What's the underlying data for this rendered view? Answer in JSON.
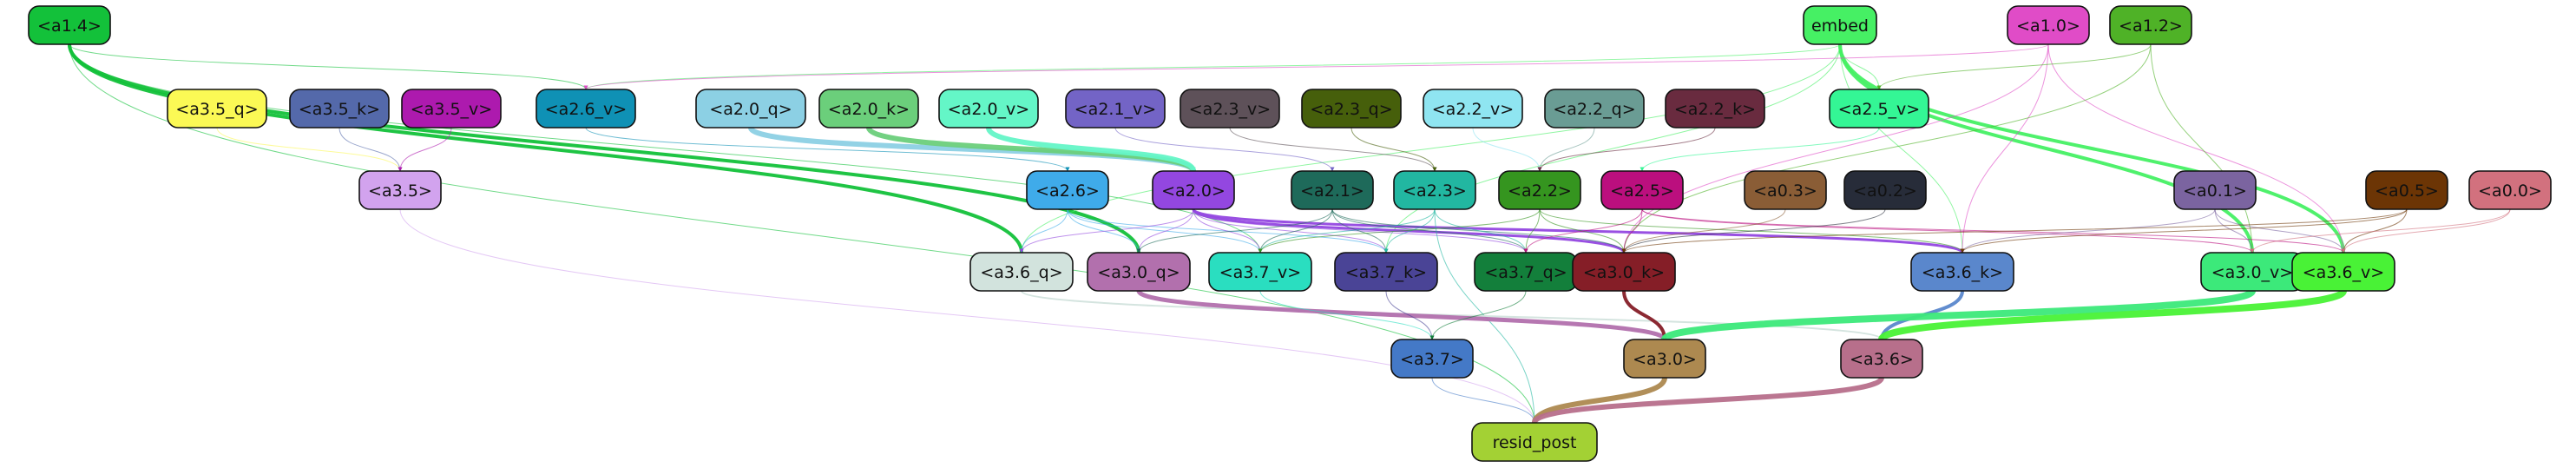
{
  "nodes": [
    {
      "id": "a1_4",
      "label": "<a1.4>",
      "fill": "#13c13a",
      "text": "#111111"
    },
    {
      "id": "embed",
      "label": "embed",
      "fill": "#46f064",
      "text": "#111111"
    },
    {
      "id": "a1_0",
      "label": "<a1.0>",
      "fill": "#e04cc7",
      "text": "#111111"
    },
    {
      "id": "a1_2",
      "label": "<a1.2>",
      "fill": "#4fb227",
      "text": "#111111"
    },
    {
      "id": "a3_5_q",
      "label": "<a3.5_q>",
      "fill": "#fbf955",
      "text": "#111111"
    },
    {
      "id": "a3_5_k",
      "label": "<a3.5_k>",
      "fill": "#5469aa",
      "text": "#111111"
    },
    {
      "id": "a3_5_v",
      "label": "<a3.5_v>",
      "fill": "#ad1aae",
      "text": "#111111"
    },
    {
      "id": "a2_6_v",
      "label": "<a2.6_v>",
      "fill": "#0f91b5",
      "text": "#111111"
    },
    {
      "id": "a2_0_q",
      "label": "<a2.0_q>",
      "fill": "#8cd0e4",
      "text": "#111111"
    },
    {
      "id": "a2_0_k",
      "label": "<a2.0_k>",
      "fill": "#6bcf7b",
      "text": "#111111"
    },
    {
      "id": "a2_0_v",
      "label": "<a2.0_v>",
      "fill": "#64f6c7",
      "text": "#111111"
    },
    {
      "id": "a2_1_v",
      "label": "<a2.1_v>",
      "fill": "#7364c6",
      "text": "#111111"
    },
    {
      "id": "a2_3_v",
      "label": "<a2.3_v>",
      "fill": "#5e5159",
      "text": "#111111"
    },
    {
      "id": "a2_3_q",
      "label": "<a2.3_q>",
      "fill": "#465f0b",
      "text": "#111111"
    },
    {
      "id": "a2_2_v",
      "label": "<a2.2_v>",
      "fill": "#8fe5f1",
      "text": "#111111"
    },
    {
      "id": "a2_2_q",
      "label": "<a2.2_q>",
      "fill": "#6a9c94",
      "text": "#111111"
    },
    {
      "id": "a2_2_k",
      "label": "<a2.2_k>",
      "fill": "#692b3f",
      "text": "#111111"
    },
    {
      "id": "a2_5_v",
      "label": "<a2.5_v>",
      "fill": "#34f695",
      "text": "#111111"
    },
    {
      "id": "a3_5",
      "label": "<a3.5>",
      "fill": "#d2a3ee",
      "text": "#111111"
    },
    {
      "id": "a2_6",
      "label": "<a2.6>",
      "fill": "#3fabea",
      "text": "#111111"
    },
    {
      "id": "a2_0",
      "label": "<a2.0>",
      "fill": "#9347e0",
      "text": "#111111"
    },
    {
      "id": "a2_1",
      "label": "<a2.1>",
      "fill": "#1e6a5a",
      "text": "#111111"
    },
    {
      "id": "a2_3",
      "label": "<a2.3>",
      "fill": "#22b7a1",
      "text": "#111111"
    },
    {
      "id": "a2_2",
      "label": "<a2.2>",
      "fill": "#35951f",
      "text": "#111111"
    },
    {
      "id": "a2_5",
      "label": "<a2.5>",
      "fill": "#bb0f7e",
      "text": "#111111"
    },
    {
      "id": "a0_3",
      "label": "<a0.3>",
      "fill": "#8a5d36",
      "text": "#111111"
    },
    {
      "id": "a0_2",
      "label": "<a0.2>",
      "fill": "#272c39",
      "text": "#111111"
    },
    {
      "id": "a0_1",
      "label": "<a0.1>",
      "fill": "#7b64a0",
      "text": "#111111"
    },
    {
      "id": "a0_5",
      "label": "<a0.5>",
      "fill": "#6c3505",
      "text": "#111111"
    },
    {
      "id": "a0_0",
      "label": "<a0.0>",
      "fill": "#d2717e",
      "text": "#111111"
    },
    {
      "id": "a3_6_q",
      "label": "<a3.6_q>",
      "fill": "#d2e3dd",
      "text": "#111111"
    },
    {
      "id": "a3_0_q",
      "label": "<a3.0_q>",
      "fill": "#b270ad",
      "text": "#111111"
    },
    {
      "id": "a3_7_v",
      "label": "<a3.7_v>",
      "fill": "#2adec0",
      "text": "#111111"
    },
    {
      "id": "a3_7_k",
      "label": "<a3.7_k>",
      "fill": "#4a4496",
      "text": "#111111"
    },
    {
      "id": "a3_7_q",
      "label": "<a3.7_q>",
      "fill": "#137f3b",
      "text": "#111111"
    },
    {
      "id": "a3_0_k",
      "label": "<a3.0_k>",
      "fill": "#851e27",
      "text": "#111111"
    },
    {
      "id": "a3_6_k",
      "label": "<a3.6_k>",
      "fill": "#5a87cc",
      "text": "#111111"
    },
    {
      "id": "a3_0_v",
      "label": "<a3.0_v>",
      "fill": "#3ce97a",
      "text": "#111111"
    },
    {
      "id": "a3_6_v",
      "label": "<a3.6_v>",
      "fill": "#49f236",
      "text": "#111111"
    },
    {
      "id": "a3_7",
      "label": "<a3.7>",
      "fill": "#4479c7",
      "text": "#111111"
    },
    {
      "id": "a3_0",
      "label": "<a3.0>",
      "fill": "#ad8950",
      "text": "#111111"
    },
    {
      "id": "a3_6",
      "label": "<a3.6>",
      "fill": "#b76f8b",
      "text": "#111111"
    },
    {
      "id": "resid_post",
      "label": "resid_post",
      "fill": "#a3d134",
      "text": "#111111"
    }
  ],
  "edges": [
    {
      "from": "a1_4",
      "to": "resid_post",
      "color": "#13c13a",
      "weight": 1
    },
    {
      "from": "a1_4",
      "to": "a3_6_q",
      "color": "#13c13a",
      "weight": 4
    },
    {
      "from": "a1_4",
      "to": "a3_0_q",
      "color": "#13c13a",
      "weight": 4
    },
    {
      "from": "a1_4",
      "to": "a2_6_v",
      "color": "#13c13a",
      "weight": 1
    },
    {
      "from": "a1_4",
      "to": "a3_7_v",
      "color": "#13c13a",
      "weight": 1
    },
    {
      "from": "embed",
      "to": "a3_6_v",
      "color": "#46f064",
      "weight": 4
    },
    {
      "from": "embed",
      "to": "a3_0_v",
      "color": "#46f064",
      "weight": 4
    },
    {
      "from": "embed",
      "to": "a2_5_v",
      "color": "#46f064",
      "weight": 1
    },
    {
      "from": "embed",
      "to": "a3_6_k",
      "color": "#46f064",
      "weight": 1
    },
    {
      "from": "embed",
      "to": "a2_6_v",
      "color": "#46f064",
      "weight": 1
    },
    {
      "from": "embed",
      "to": "a3_6_q",
      "color": "#46f064",
      "weight": 1
    },
    {
      "from": "embed",
      "to": "a3_7_k",
      "color": "#46f064",
      "weight": 1
    },
    {
      "from": "a1_0",
      "to": "a3_6_k",
      "color": "#e04cc7",
      "weight": 1
    },
    {
      "from": "a1_0",
      "to": "a3_0_k",
      "color": "#e04cc7",
      "weight": 1
    },
    {
      "from": "a1_0",
      "to": "a3_6_v",
      "color": "#e04cc7",
      "weight": 1
    },
    {
      "from": "a1_0",
      "to": "a2_6_v",
      "color": "#e04cc7",
      "weight": 1
    },
    {
      "from": "a1_2",
      "to": "a3_0_v",
      "color": "#4fb227",
      "weight": 1
    },
    {
      "from": "a1_2",
      "to": "a2_5_v",
      "color": "#4fb227",
      "weight": 1
    },
    {
      "from": "a1_2",
      "to": "a3_0_k",
      "color": "#4fb227",
      "weight": 1
    },
    {
      "from": "a3_5_q",
      "to": "a3_5",
      "color": "#fbf955",
      "weight": 1
    },
    {
      "from": "a3_5_k",
      "to": "a3_5",
      "color": "#5469aa",
      "weight": 1
    },
    {
      "from": "a3_5_v",
      "to": "a3_5",
      "color": "#ad1aae",
      "weight": 1
    },
    {
      "from": "a3_5",
      "to": "resid_post",
      "color": "#d2a3ee",
      "weight": 1
    },
    {
      "from": "a2_6_v",
      "to": "a2_6",
      "color": "#0f91b5",
      "weight": 1
    },
    {
      "from": "a2_0_q",
      "to": "a2_0",
      "color": "#8cd0e4",
      "weight": 6
    },
    {
      "from": "a2_0_k",
      "to": "a2_0",
      "color": "#6bcf7b",
      "weight": 6
    },
    {
      "from": "a2_0_v",
      "to": "a2_0",
      "color": "#64f6c7",
      "weight": 6
    },
    {
      "from": "a2_1_v",
      "to": "a2_1",
      "color": "#7364c6",
      "weight": 1
    },
    {
      "from": "a2_3_v",
      "to": "a2_3",
      "color": "#5e5159",
      "weight": 1
    },
    {
      "from": "a2_3_q",
      "to": "a2_3",
      "color": "#465f0b",
      "weight": 1
    },
    {
      "from": "a2_2_v",
      "to": "a2_2",
      "color": "#8fe5f1",
      "weight": 1
    },
    {
      "from": "a2_2_q",
      "to": "a2_2",
      "color": "#6a9c94",
      "weight": 1
    },
    {
      "from": "a2_2_k",
      "to": "a2_2",
      "color": "#692b3f",
      "weight": 1
    },
    {
      "from": "a2_5_v",
      "to": "a2_5",
      "color": "#34f695",
      "weight": 1
    },
    {
      "from": "a2_6",
      "to": "a3_6_q",
      "color": "#3fabea",
      "weight": 1
    },
    {
      "from": "a2_6",
      "to": "a3_0_q",
      "color": "#3fabea",
      "weight": 1
    },
    {
      "from": "a2_6",
      "to": "a3_7_v",
      "color": "#3fabea",
      "weight": 1
    },
    {
      "from": "a2_6",
      "to": "a3_7_k",
      "color": "#3fabea",
      "weight": 1
    },
    {
      "from": "a2_0",
      "to": "a3_6_q",
      "color": "#9347e0",
      "weight": 1
    },
    {
      "from": "a2_0",
      "to": "a3_0_q",
      "color": "#9347e0",
      "weight": 1
    },
    {
      "from": "a2_0",
      "to": "a3_7_v",
      "color": "#9347e0",
      "weight": 1
    },
    {
      "from": "a2_0",
      "to": "a3_7_k",
      "color": "#9347e0",
      "weight": 1
    },
    {
      "from": "a2_0",
      "to": "a3_7_q",
      "color": "#9347e0",
      "weight": 1
    },
    {
      "from": "a2_0",
      "to": "a3_0_k",
      "color": "#9347e0",
      "weight": 3
    },
    {
      "from": "a2_0",
      "to": "a3_6_k",
      "color": "#9347e0",
      "weight": 3
    },
    {
      "from": "a2_1",
      "to": "a3_0_q",
      "color": "#1e6a5a",
      "weight": 1
    },
    {
      "from": "a2_1",
      "to": "a3_7_v",
      "color": "#1e6a5a",
      "weight": 1
    },
    {
      "from": "a2_1",
      "to": "a3_7_k",
      "color": "#1e6a5a",
      "weight": 1
    },
    {
      "from": "a2_1",
      "to": "a3_7_q",
      "color": "#1e6a5a",
      "weight": 1
    },
    {
      "from": "a2_1",
      "to": "a3_0_k",
      "color": "#1e6a5a",
      "weight": 1
    },
    {
      "from": "a2_3",
      "to": "a3_7_v",
      "color": "#22b7a1",
      "weight": 1
    },
    {
      "from": "a2_3",
      "to": "a3_7_k",
      "color": "#22b7a1",
      "weight": 1
    },
    {
      "from": "a2_3",
      "to": "a3_7_q",
      "color": "#22b7a1",
      "weight": 1
    },
    {
      "from": "a2_3",
      "to": "resid_post",
      "color": "#22b7a1",
      "weight": 1
    },
    {
      "from": "a2_2",
      "to": "a3_7_v",
      "color": "#35951f",
      "weight": 1
    },
    {
      "from": "a2_2",
      "to": "a3_7_q",
      "color": "#35951f",
      "weight": 1
    },
    {
      "from": "a2_2",
      "to": "a3_0_k",
      "color": "#35951f",
      "weight": 1
    },
    {
      "from": "a2_2",
      "to": "a3_6_k",
      "color": "#35951f",
      "weight": 1
    },
    {
      "from": "a2_5",
      "to": "a3_0_k",
      "color": "#bb0f7e",
      "weight": 1
    },
    {
      "from": "a2_5",
      "to": "a3_7_q",
      "color": "#bb0f7e",
      "weight": 1
    },
    {
      "from": "a2_5",
      "to": "a3_6_v",
      "color": "#bb0f7e",
      "weight": 1
    },
    {
      "from": "a2_5",
      "to": "a3_0_v",
      "color": "#bb0f7e",
      "weight": 1
    },
    {
      "from": "a0_3",
      "to": "a3_0_k",
      "color": "#8a5d36",
      "weight": 1
    },
    {
      "from": "a0_2",
      "to": "a3_0_k",
      "color": "#272c39",
      "weight": 1
    },
    {
      "from": "a0_1",
      "to": "a3_0_v",
      "color": "#7b64a0",
      "weight": 1
    },
    {
      "from": "a0_1",
      "to": "a3_6_v",
      "color": "#7b64a0",
      "weight": 1
    },
    {
      "from": "a0_1",
      "to": "a3_6_k",
      "color": "#7b64a0",
      "weight": 1
    },
    {
      "from": "a0_5",
      "to": "a3_6_v",
      "color": "#6c3505",
      "weight": 1
    },
    {
      "from": "a0_5",
      "to": "a3_6_k",
      "color": "#6c3505",
      "weight": 1
    },
    {
      "from": "a0_5",
      "to": "a3_0_k",
      "color": "#6c3505",
      "weight": 1
    },
    {
      "from": "a0_0",
      "to": "a3_6_v",
      "color": "#d2717e",
      "weight": 1
    },
    {
      "from": "a0_0",
      "to": "a3_0_v",
      "color": "#d2717e",
      "weight": 1
    },
    {
      "from": "a3_6_q",
      "to": "a3_6",
      "color": "#d2e3dd",
      "weight": 2
    },
    {
      "from": "a3_0_q",
      "to": "a3_0",
      "color": "#b270ad",
      "weight": 5
    },
    {
      "from": "a3_7_v",
      "to": "a3_7",
      "color": "#2adec0",
      "weight": 1
    },
    {
      "from": "a3_7_k",
      "to": "a3_7",
      "color": "#4a4496",
      "weight": 1
    },
    {
      "from": "a3_7_q",
      "to": "a3_7",
      "color": "#137f3b",
      "weight": 1
    },
    {
      "from": "a3_0_k",
      "to": "a3_0",
      "color": "#851e27",
      "weight": 4
    },
    {
      "from": "a3_6_k",
      "to": "a3_6",
      "color": "#5a87cc",
      "weight": 4
    },
    {
      "from": "a3_0_v",
      "to": "a3_0",
      "color": "#3ce97a",
      "weight": 8
    },
    {
      "from": "a3_6_v",
      "to": "a3_6",
      "color": "#49f236",
      "weight": 8
    },
    {
      "from": "a3_7",
      "to": "resid_post",
      "color": "#4479c7",
      "weight": 1
    },
    {
      "from": "a3_0",
      "to": "resid_post",
      "color": "#ad8950",
      "weight": 6
    },
    {
      "from": "a3_6",
      "to": "resid_post",
      "color": "#b76f8b",
      "weight": 6
    }
  ]
}
